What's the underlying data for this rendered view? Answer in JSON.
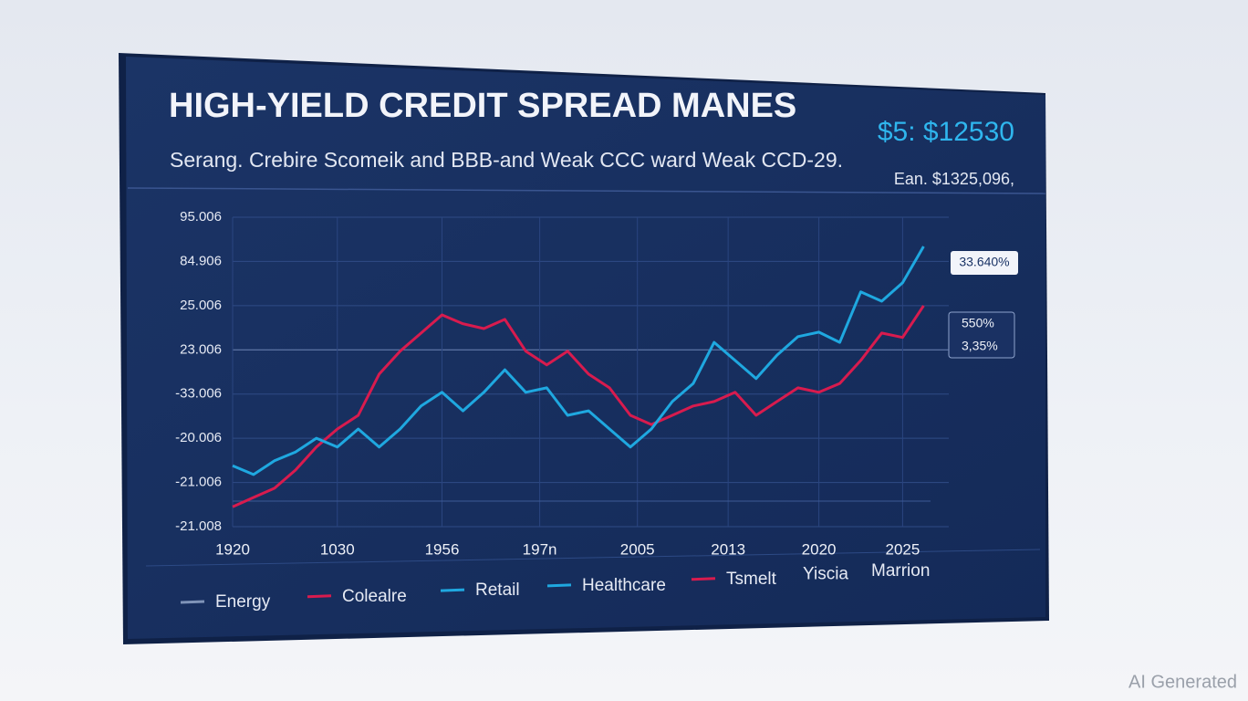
{
  "chart_data": {
    "type": "line",
    "title": "HIGH-YIELD CREDIT SPREAD MANES",
    "subtitle": "Serang. Crebire Scomeik and BBB-and Weak CCC ward Weak CCD-29.",
    "headline_value": "$5: $12530",
    "headline_note": "Ean. $1325,096,",
    "callouts": [
      "33.640%",
      "550%",
      "3,35%"
    ],
    "watermark": "AI Generated",
    "xlim": [
      0,
      100
    ],
    "xticks": [
      {
        "value": 0,
        "label": "1920"
      },
      {
        "value": 15,
        "label": "1030"
      },
      {
        "value": 30,
        "label": "1956"
      },
      {
        "value": 44,
        "label": "197n"
      },
      {
        "value": 58,
        "label": "2005"
      },
      {
        "value": 71,
        "label": "2013"
      },
      {
        "value": 84,
        "label": "2020"
      },
      {
        "value": 96,
        "label": "2025"
      }
    ],
    "ylim": [
      0,
      7
    ],
    "yticks": [
      {
        "value": 0,
        "label": "-21.008"
      },
      {
        "value": 1,
        "label": "-21.006"
      },
      {
        "value": 2,
        "label": "-20.006"
      },
      {
        "value": 3,
        "label": "-33.006"
      },
      {
        "value": 4,
        "label": "23.006"
      },
      {
        "value": 5,
        "label": "25.006"
      },
      {
        "value": 6,
        "label": "84.906"
      },
      {
        "value": 7,
        "label": "95.006"
      }
    ],
    "grid": true,
    "x": [
      0,
      3,
      6,
      9,
      12,
      15,
      18,
      21,
      24,
      27,
      30,
      33,
      36,
      39,
      42,
      45,
      48,
      51,
      54,
      57,
      60,
      63,
      66,
      69,
      72,
      75,
      78,
      81,
      84,
      87,
      90,
      93,
      96,
      99
    ],
    "series": [
      {
        "color": "#d81b4e",
        "values": [
          0.45,
          0.66,
          0.87,
          1.28,
          1.8,
          2.21,
          2.52,
          3.45,
          3.97,
          4.38,
          4.79,
          4.59,
          4.48,
          4.69,
          3.97,
          3.66,
          3.97,
          3.45,
          3.14,
          2.52,
          2.31,
          2.52,
          2.73,
          2.83,
          3.04,
          2.52,
          2.83,
          3.14,
          3.04,
          3.24,
          3.76,
          4.38,
          4.28,
          5.0
        ]
      },
      {
        "color": "#1fa8e0",
        "values": [
          1.38,
          1.18,
          1.49,
          1.69,
          2.0,
          1.8,
          2.21,
          1.8,
          2.21,
          2.73,
          3.04,
          2.62,
          3.04,
          3.55,
          3.04,
          3.14,
          2.52,
          2.62,
          2.21,
          1.8,
          2.21,
          2.83,
          3.24,
          4.17,
          3.76,
          3.35,
          3.88,
          4.3,
          4.4,
          4.17,
          5.31,
          5.1,
          5.52,
          6.34
        ]
      }
    ],
    "legend": [
      {
        "name": "Energy",
        "color": "#7f93b8"
      },
      {
        "name": "Colealre",
        "color": "#d81b4e"
      },
      {
        "name": "Retail",
        "color": "#1fa8e0"
      },
      {
        "name": "Healthcare",
        "color": "#1fa8e0"
      },
      {
        "name": "Tsmelt",
        "color": "#d81b4e"
      },
      {
        "name": "Yiscia"
      },
      {
        "name": "Marrion"
      }
    ]
  }
}
